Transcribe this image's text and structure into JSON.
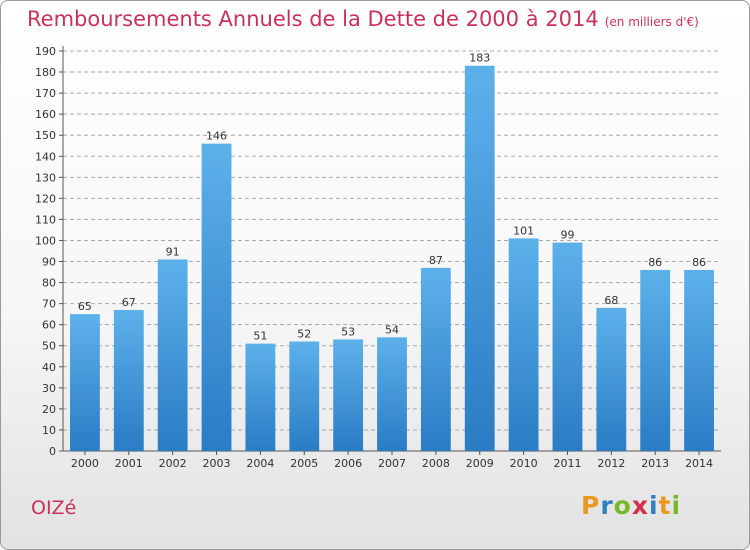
{
  "header": {
    "title": "Remboursements Annuels de la Dette de 2000 à 2014",
    "subtitle": "(en milliers d'€)"
  },
  "footer": {
    "place": "OIZé",
    "logo": {
      "letters": [
        "P",
        "r",
        "o",
        "x",
        "i",
        "t",
        "i"
      ],
      "colors": [
        "#e89a1c",
        "#2f7fc1",
        "#7ab82b",
        "#d62d4b",
        "#2f7fc1",
        "#e89a1c",
        "#7ab82b"
      ]
    }
  },
  "colors": {
    "bar_top": "#5db1ea",
    "bar_bottom": "#2a7cc4",
    "grid": "#a9a9a9",
    "text": "#333333"
  },
  "chart_data": {
    "type": "bar",
    "title": "Remboursements Annuels de la Dette de 2000 à 2014",
    "subtitle": "(en milliers d'€)",
    "categories": [
      "2000",
      "2001",
      "2002",
      "2003",
      "2004",
      "2005",
      "2006",
      "2007",
      "2008",
      "2009",
      "2010",
      "2011",
      "2012",
      "2013",
      "2014"
    ],
    "values": [
      65,
      67,
      91,
      146,
      51,
      52,
      53,
      54,
      87,
      183,
      101,
      99,
      68,
      86,
      86
    ],
    "ylim": [
      0,
      190
    ],
    "ytick_step": 10,
    "grid": true,
    "data_labels": true,
    "xlabel": "",
    "ylabel": ""
  }
}
